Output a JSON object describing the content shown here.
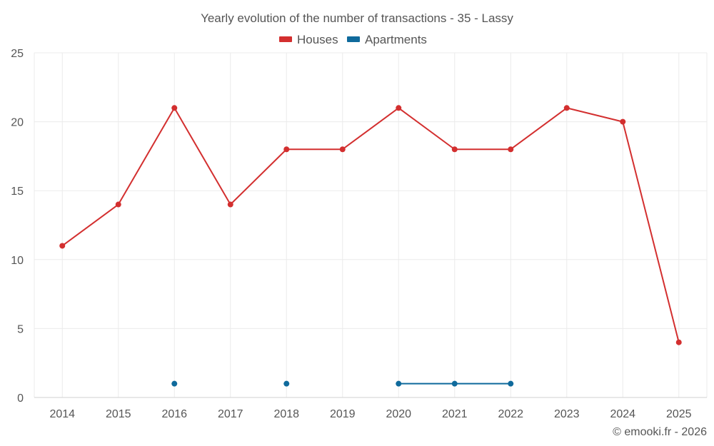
{
  "chart_data": {
    "type": "line",
    "title": "Yearly evolution of the number of transactions - 35 - Lassy",
    "categories": [
      "2014",
      "2015",
      "2016",
      "2017",
      "2018",
      "2019",
      "2020",
      "2021",
      "2022",
      "2023",
      "2024",
      "2025"
    ],
    "series": [
      {
        "name": "Houses",
        "color": "#d32f2f",
        "values": [
          11,
          14,
          21,
          14,
          18,
          18,
          21,
          18,
          18,
          21,
          20,
          4
        ]
      },
      {
        "name": "Apartments",
        "color": "#0f6a9c",
        "values": [
          null,
          null,
          1,
          null,
          1,
          null,
          1,
          1,
          1,
          null,
          null,
          null
        ]
      }
    ],
    "yticks": [
      "0",
      "5",
      "10",
      "15",
      "20",
      "25"
    ],
    "ylim": [
      0,
      25
    ],
    "grid": true,
    "legend": "top-center"
  },
  "credit": "© emooki.fr - 2026"
}
